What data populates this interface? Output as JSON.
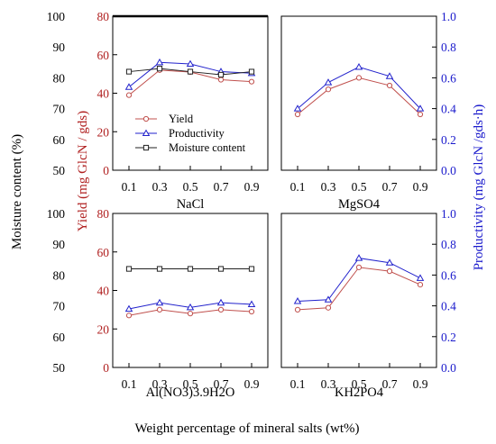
{
  "colors": {
    "yield": "#c0504d",
    "productivity": "#2222cc",
    "moisture": "#222222",
    "left_axis_text": "#000000",
    "yield_axis_text": "#b02020",
    "productivity_axis_text": "#1a1acc"
  },
  "chart_data": {
    "type": "line",
    "xlabel": "Weight percentage of mineral salts (wt%)",
    "axes": {
      "moisture": {
        "label": "Moisture content (%)",
        "range": [
          50,
          100
        ],
        "ticks": [
          "50",
          "60",
          "70",
          "80",
          "90",
          "100"
        ]
      },
      "yield": {
        "label": "Yield (mg GlcN / gds)",
        "range": [
          0,
          80
        ],
        "ticks": [
          "0",
          "20",
          "40",
          "60",
          "80"
        ]
      },
      "productivity": {
        "label": "Productivity (mg GlcN /gds·h)",
        "range": [
          0.0,
          1.0
        ],
        "ticks": [
          "0.0",
          "0.2",
          "0.4",
          "0.6",
          "0.8",
          "1.0"
        ]
      }
    },
    "x_ticks": [
      "0.1",
      "0.3",
      "0.5",
      "0.7",
      "0.9"
    ],
    "legend": {
      "placement": "center-left of top-left panel",
      "items": [
        "Yield",
        "Productivity",
        "Moisture content"
      ]
    },
    "panels": [
      {
        "id": "nacl",
        "salt": "NaCl",
        "x": [
          0.1,
          0.3,
          0.5,
          0.7,
          0.9
        ],
        "series": [
          {
            "name": "Yield",
            "values": [
              39,
              52,
              51,
              47,
              46
            ]
          },
          {
            "name": "Productivity",
            "values": [
              0.54,
              0.7,
              0.69,
              0.64,
              0.63
            ]
          },
          {
            "name": "Moisture content",
            "values": [
              82,
              83,
              82,
              81,
              82
            ]
          }
        ]
      },
      {
        "id": "mgso4",
        "salt": "MgSO4",
        "x": [
          0.1,
          0.3,
          0.5,
          0.7,
          0.9
        ],
        "series": [
          {
            "name": "Yield",
            "values": [
              29,
              42,
              48,
              44,
              29
            ]
          },
          {
            "name": "Productivity",
            "values": [
              0.4,
              0.57,
              0.67,
              0.61,
              0.4
            ]
          }
        ]
      },
      {
        "id": "alno3",
        "salt": "Al(NO3)3.9H2O",
        "x": [
          0.1,
          0.3,
          0.5,
          0.7,
          0.9
        ],
        "series": [
          {
            "name": "Yield",
            "values": [
              27,
              30,
              28,
              30,
              29
            ]
          },
          {
            "name": "Productivity",
            "values": [
              0.38,
              0.42,
              0.39,
              0.42,
              0.41
            ]
          },
          {
            "name": "Moisture content",
            "values": [
              82,
              82,
              82,
              82,
              82
            ]
          }
        ]
      },
      {
        "id": "kh2po4",
        "salt": "KH2PO4",
        "x": [
          0.1,
          0.3,
          0.5,
          0.7,
          0.9
        ],
        "series": [
          {
            "name": "Yield",
            "values": [
              30,
              31,
              52,
              50,
              43
            ]
          },
          {
            "name": "Productivity",
            "values": [
              0.43,
              0.44,
              0.71,
              0.68,
              0.58
            ]
          }
        ]
      }
    ]
  }
}
